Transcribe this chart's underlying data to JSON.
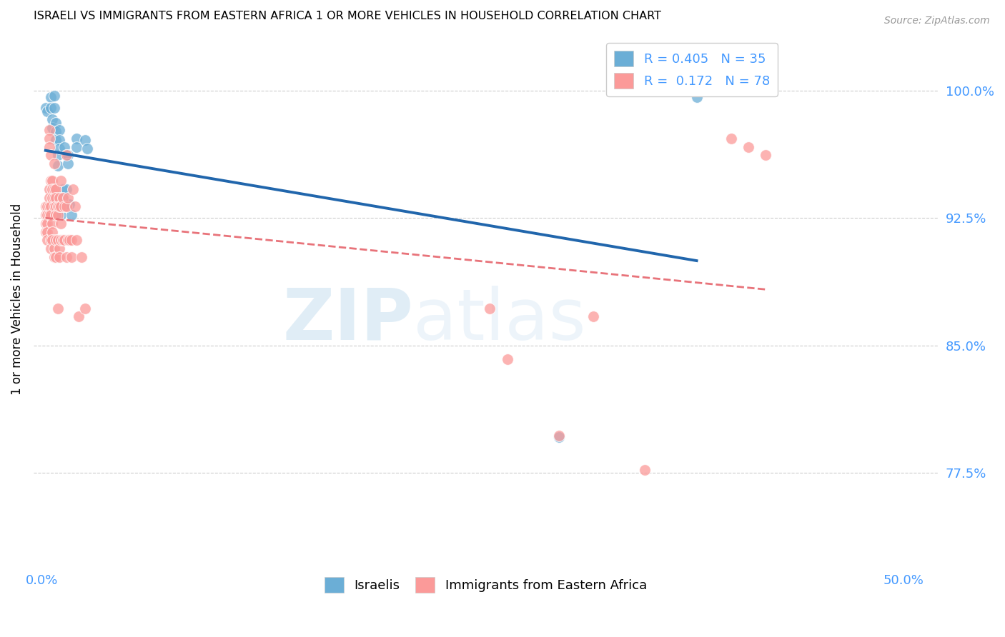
{
  "title": "ISRAELI VS IMMIGRANTS FROM EASTERN AFRICA 1 OR MORE VEHICLES IN HOUSEHOLD CORRELATION CHART",
  "source": "Source: ZipAtlas.com",
  "ylabel": "1 or more Vehicles in Household",
  "ytick_labels": [
    "100.0%",
    "92.5%",
    "85.0%",
    "77.5%"
  ],
  "ytick_values": [
    1.0,
    0.925,
    0.85,
    0.775
  ],
  "legend_r_israeli": "R = 0.405",
  "legend_n_israeli": "N = 35",
  "legend_r_immigrants": "R =  0.172",
  "legend_n_immigrants": "N = 78",
  "israeli_color": "#6baed6",
  "immigrant_color": "#fb9a99",
  "trendline_israeli_color": "#2166ac",
  "trendline_immigrant_color": "#e8737a",
  "background_color": "#ffffff",
  "grid_color": "#cccccc",
  "axis_label_color": "#4499ff",
  "israeli_points": [
    [
      0.2,
      0.99
    ],
    [
      0.3,
      0.988
    ],
    [
      0.5,
      0.996
    ],
    [
      0.5,
      0.99
    ],
    [
      0.6,
      0.983
    ],
    [
      0.6,
      0.978
    ],
    [
      0.7,
      0.997
    ],
    [
      0.7,
      0.99
    ],
    [
      0.8,
      0.981
    ],
    [
      0.8,
      0.976
    ],
    [
      0.8,
      0.971
    ],
    [
      0.9,
      0.962
    ],
    [
      0.9,
      0.956
    ],
    [
      1.0,
      0.977
    ],
    [
      1.0,
      0.971
    ],
    [
      1.0,
      0.966
    ],
    [
      1.1,
      0.938
    ],
    [
      1.1,
      0.933
    ],
    [
      1.1,
      0.927
    ],
    [
      1.2,
      0.942
    ],
    [
      1.2,
      0.937
    ],
    [
      1.2,
      0.932
    ],
    [
      1.3,
      0.967
    ],
    [
      1.4,
      0.962
    ],
    [
      1.4,
      0.942
    ],
    [
      1.5,
      0.962
    ],
    [
      1.5,
      0.957
    ],
    [
      1.6,
      0.933
    ],
    [
      1.7,
      0.927
    ],
    [
      2.0,
      0.972
    ],
    [
      2.0,
      0.967
    ],
    [
      2.5,
      0.971
    ],
    [
      2.6,
      0.966
    ],
    [
      30.0,
      0.796
    ],
    [
      38.0,
      0.996
    ]
  ],
  "immigrant_points": [
    [
      0.2,
      0.932
    ],
    [
      0.2,
      0.927
    ],
    [
      0.2,
      0.922
    ],
    [
      0.2,
      0.917
    ],
    [
      0.3,
      0.932
    ],
    [
      0.3,
      0.927
    ],
    [
      0.3,
      0.922
    ],
    [
      0.3,
      0.917
    ],
    [
      0.3,
      0.912
    ],
    [
      0.4,
      0.977
    ],
    [
      0.4,
      0.972
    ],
    [
      0.4,
      0.967
    ],
    [
      0.4,
      0.942
    ],
    [
      0.4,
      0.937
    ],
    [
      0.4,
      0.932
    ],
    [
      0.4,
      0.927
    ],
    [
      0.5,
      0.962
    ],
    [
      0.5,
      0.947
    ],
    [
      0.5,
      0.932
    ],
    [
      0.5,
      0.927
    ],
    [
      0.5,
      0.912
    ],
    [
      0.5,
      0.907
    ],
    [
      0.6,
      0.947
    ],
    [
      0.6,
      0.942
    ],
    [
      0.6,
      0.937
    ],
    [
      0.6,
      0.922
    ],
    [
      0.6,
      0.917
    ],
    [
      0.6,
      0.912
    ],
    [
      0.7,
      0.957
    ],
    [
      0.7,
      0.942
    ],
    [
      0.7,
      0.937
    ],
    [
      0.7,
      0.932
    ],
    [
      0.7,
      0.907
    ],
    [
      0.7,
      0.902
    ],
    [
      0.8,
      0.942
    ],
    [
      0.8,
      0.937
    ],
    [
      0.8,
      0.932
    ],
    [
      0.8,
      0.927
    ],
    [
      0.8,
      0.912
    ],
    [
      0.8,
      0.902
    ],
    [
      0.9,
      0.932
    ],
    [
      0.9,
      0.927
    ],
    [
      0.9,
      0.912
    ],
    [
      0.9,
      0.872
    ],
    [
      1.0,
      0.937
    ],
    [
      1.0,
      0.932
    ],
    [
      1.0,
      0.907
    ],
    [
      1.0,
      0.902
    ],
    [
      1.1,
      0.947
    ],
    [
      1.1,
      0.932
    ],
    [
      1.1,
      0.922
    ],
    [
      1.1,
      0.912
    ],
    [
      1.2,
      0.937
    ],
    [
      1.2,
      0.912
    ],
    [
      1.3,
      0.932
    ],
    [
      1.3,
      0.912
    ],
    [
      1.4,
      0.962
    ],
    [
      1.4,
      0.932
    ],
    [
      1.4,
      0.902
    ],
    [
      1.5,
      0.937
    ],
    [
      1.5,
      0.912
    ],
    [
      1.6,
      0.912
    ],
    [
      1.7,
      0.912
    ],
    [
      1.7,
      0.902
    ],
    [
      1.8,
      0.942
    ],
    [
      1.9,
      0.932
    ],
    [
      2.0,
      0.912
    ],
    [
      2.1,
      0.867
    ],
    [
      2.3,
      0.902
    ],
    [
      2.5,
      0.872
    ],
    [
      26.0,
      0.872
    ],
    [
      27.0,
      0.842
    ],
    [
      30.0,
      0.797
    ],
    [
      32.0,
      0.867
    ],
    [
      35.0,
      0.777
    ],
    [
      40.0,
      0.972
    ],
    [
      41.0,
      0.967
    ],
    [
      42.0,
      0.962
    ]
  ],
  "xlim": [
    -0.5,
    52.0
  ],
  "ylim": [
    0.72,
    1.035
  ],
  "xtick_left_val": 0.0,
  "xtick_right_val": 50.0,
  "watermark_text": "ZIPAtlas",
  "watermark_color": "#d0e8f8"
}
